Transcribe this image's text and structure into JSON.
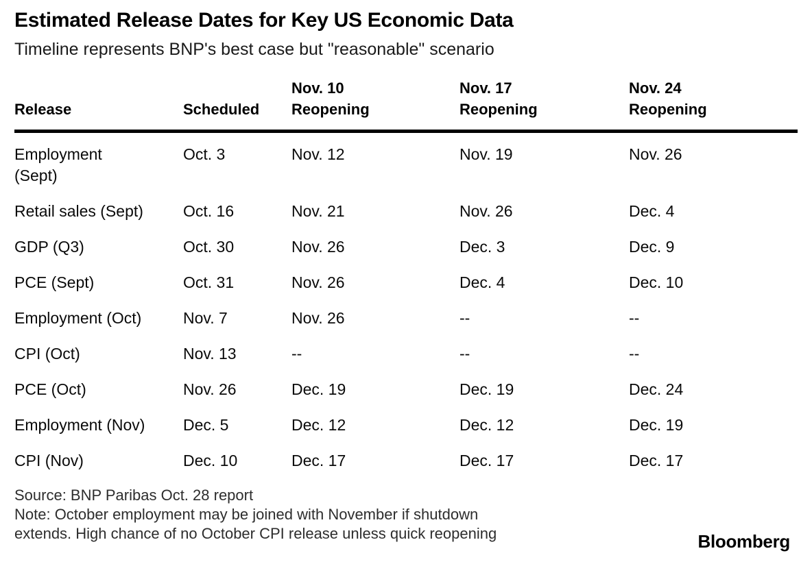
{
  "chart_data": {
    "type": "table",
    "title": "Estimated Release Dates for Key US Economic Data",
    "subtitle": "Timeline represents BNP's best case but \"reasonable\" scenario",
    "columns": [
      "Release",
      "Scheduled",
      "Nov. 10\nReopening",
      "Nov. 17\nReopening",
      "Nov. 24\nReopening"
    ],
    "rows": [
      [
        "Employment\n(Sept)",
        "Oct. 3",
        "Nov. 12",
        "Nov. 19",
        "Nov. 26"
      ],
      [
        "Retail sales (Sept)",
        "Oct. 16",
        "Nov. 21",
        "Nov. 26",
        "Dec. 4"
      ],
      [
        "GDP (Q3)",
        "Oct. 30",
        "Nov. 26",
        "Dec. 3",
        "Dec. 9"
      ],
      [
        "PCE (Sept)",
        "Oct. 31",
        "Nov. 26",
        "Dec. 4",
        "Dec. 10"
      ],
      [
        "Employment (Oct)",
        "Nov. 7",
        "Nov. 26",
        "--",
        "--"
      ],
      [
        "CPI (Oct)",
        "Nov. 13",
        "--",
        "--",
        "--"
      ],
      [
        "PCE (Oct)",
        "Nov. 26",
        "Dec. 19",
        "Dec. 19",
        "Dec. 24"
      ],
      [
        "Employment (Nov)",
        "Dec. 5",
        "Dec. 12",
        "Dec. 12",
        "Dec. 19"
      ],
      [
        "CPI (Nov)",
        "Dec. 10",
        "Dec. 17",
        "Dec. 17",
        "Dec. 17"
      ]
    ],
    "missing_value_marker": "--"
  },
  "footer": {
    "source": "Source: BNP Paribas Oct. 28 report",
    "note": "Note: October employment may be joined with November if shutdown\nextends. High chance of no October CPI release unless quick reopening",
    "logo": "Bloomberg"
  },
  "colors": {
    "background": "#ffffff",
    "text": "#000000",
    "footer_text": "#2d2d2d",
    "header_rule": "#000000"
  }
}
